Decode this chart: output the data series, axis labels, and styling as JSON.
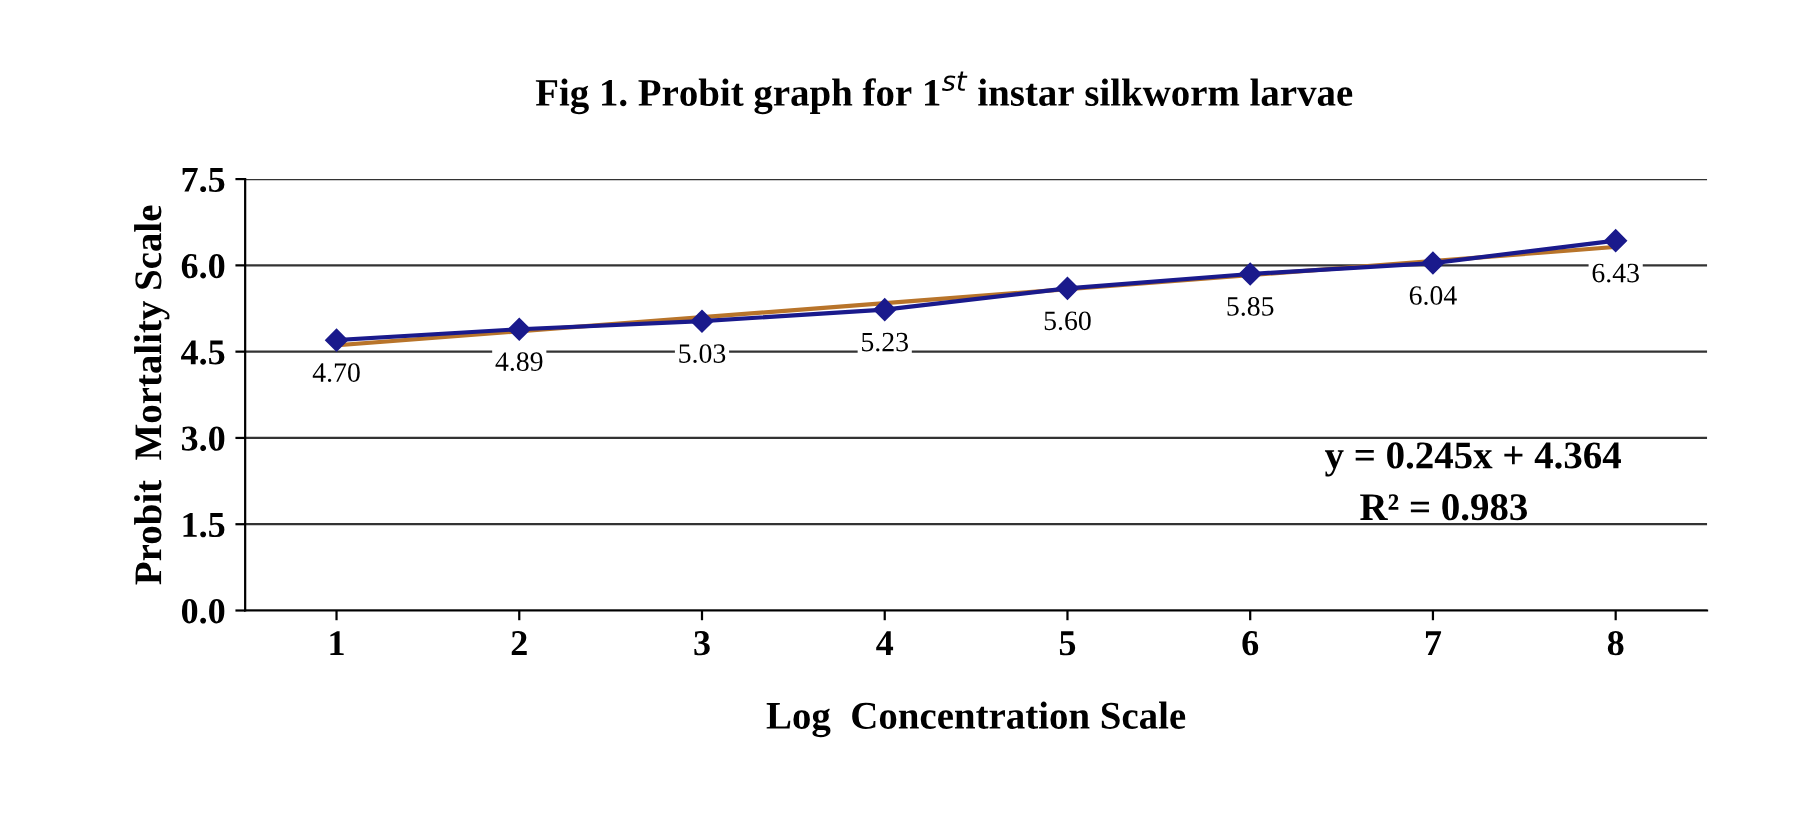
{
  "chart_data": {
    "type": "line",
    "title": "Fig 1. Probit graph for 1$^{st}$ instar silkworm larvae",
    "xlabel": "Log  Concentration Scale",
    "ylabel": "Probit  Mortality Scale",
    "x": [
      1,
      2,
      3,
      4,
      5,
      6,
      7,
      8
    ],
    "xlim": [
      0.5,
      8.5
    ],
    "xticks": [
      1,
      2,
      3,
      4,
      5,
      6,
      7,
      8
    ],
    "ylim": [
      0,
      7.5
    ],
    "yticks": [
      {
        "value": 0,
        "label": "0.0"
      },
      {
        "value": 1.5,
        "label": "1.5"
      },
      {
        "value": 3,
        "label": "3.0"
      },
      {
        "value": 4.5,
        "label": "4.5"
      },
      {
        "value": 6,
        "label": "6.0"
      },
      {
        "value": 7.5,
        "label": "7.5"
      }
    ],
    "grid": "y",
    "series": [
      {
        "color": "#1a1a8c",
        "marker": "diamond",
        "line_style": "solid",
        "values": [
          4.7,
          4.89,
          5.03,
          5.23,
          5.6,
          5.85,
          6.04,
          6.43
        ],
        "value_labels": [
          "4.70",
          "4.89",
          "5.03",
          "5.23",
          "5.60",
          "5.85",
          "6.04",
          "6.43"
        ]
      },
      {
        "type": "line",
        "color": "#b8742a",
        "marker": "none",
        "line_style": "solid",
        "x": [
          1,
          8
        ],
        "values": [
          4.61,
          6.32
        ]
      }
    ],
    "annotations": [
      "y = 0.245x + 4.364",
      "R² = 0.983"
    ]
  }
}
